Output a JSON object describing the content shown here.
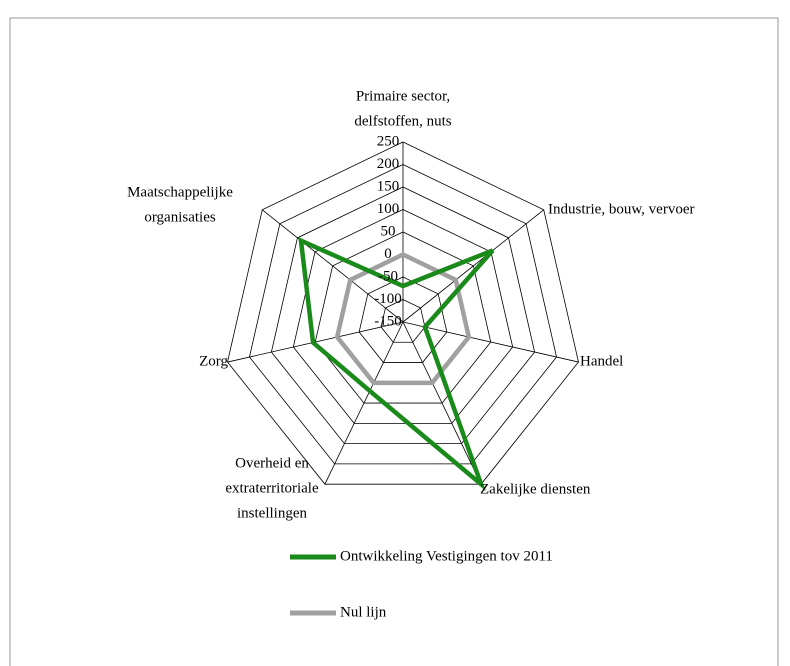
{
  "chart_data": {
    "type": "radar",
    "categories": [
      [
        "Primaire sector,",
        "delfstoffen, nuts"
      ],
      [
        "Industrie, bouw, vervoer"
      ],
      [
        "Handel"
      ],
      [
        "Zakelijke diensten"
      ],
      [
        "Overheid en",
        "extraterritoriale",
        "instellingen"
      ],
      [
        "Zorg"
      ],
      [
        "Maatschappelijke",
        "organisaties"
      ]
    ],
    "series": [
      {
        "name": "Ontwikkeling Vestigingen tov 2011",
        "color": "#1a8a1a",
        "values": [
          -70,
          105,
          -100,
          250,
          20,
          55,
          140
        ]
      },
      {
        "name": "Nul lijn",
        "color": "#a0a0a0",
        "values": [
          0,
          0,
          0,
          0,
          0,
          0,
          0
        ]
      }
    ],
    "ylim": [
      -150,
      250
    ],
    "yticks": [
      -150,
      -100,
      -50,
      0,
      50,
      100,
      150,
      200,
      250
    ],
    "grid": true
  }
}
